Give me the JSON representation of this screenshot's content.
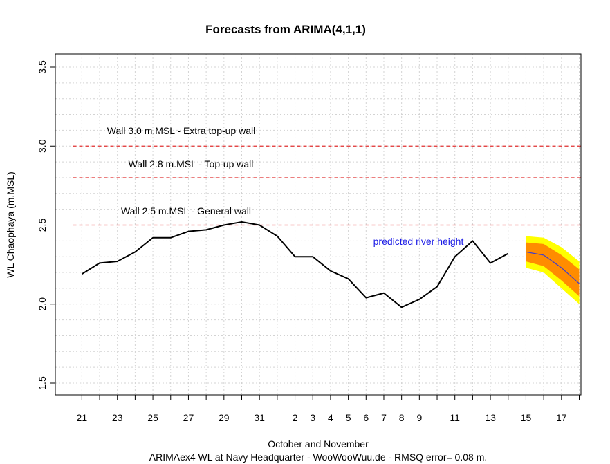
{
  "chart_data": {
    "type": "line",
    "title": "Forecasts from ARIMA(4,1,1)",
    "xlabel": "October and November",
    "subtitle": "ARIMAex4 WL at Navy Headquarter - WooWooWuu.de - RMSQ error= 0.08  m.",
    "ylabel": "WL Chaophaya (m.MSL)",
    "ylim": [
      1.5,
      3.5
    ],
    "y_ticks": [
      "1.5",
      "2.0",
      "2.5",
      "3.0",
      "3.5"
    ],
    "x_ticks": [
      "21",
      "23",
      "25",
      "27",
      "29",
      "31",
      "2",
      "3",
      "4",
      "5",
      "6",
      "7",
      "8",
      "9",
      "11",
      "13",
      "15",
      "17"
    ],
    "x_tick_index": [
      0,
      2,
      4,
      6,
      8,
      10,
      12,
      13,
      14,
      15,
      16,
      17,
      18,
      19,
      21,
      23,
      25,
      27
    ],
    "x_index_range": [
      -0.5,
      28.0
    ],
    "grid": true,
    "observed": {
      "x": [
        0,
        1,
        2,
        3,
        4,
        5,
        6,
        7,
        8,
        9,
        10,
        11,
        12,
        13,
        14,
        15,
        16,
        17,
        18,
        19,
        20,
        21,
        22,
        23,
        24
      ],
      "values": [
        2.19,
        2.26,
        2.27,
        2.33,
        2.42,
        2.42,
        2.46,
        2.47,
        2.5,
        2.52,
        2.5,
        2.43,
        2.3,
        2.3,
        2.21,
        2.16,
        2.04,
        2.07,
        1.98,
        2.03,
        2.11,
        2.3,
        2.4,
        2.26,
        2.32
      ],
      "color": "#000000"
    },
    "forecast": {
      "x": [
        25,
        26,
        27,
        28
      ],
      "mean": [
        2.33,
        2.31,
        2.23,
        2.13
      ],
      "lower80": [
        2.27,
        2.24,
        2.15,
        2.05
      ],
      "upper80": [
        2.39,
        2.38,
        2.31,
        2.22
      ],
      "lower95": [
        2.23,
        2.2,
        2.1,
        2.0
      ],
      "upper95": [
        2.43,
        2.42,
        2.36,
        2.27
      ],
      "mean_color": "#3b3bd1",
      "band80_color": "#ff8c00",
      "band95_color": "#ffff00"
    },
    "reference_lines": [
      {
        "y": 3.0,
        "label": "Wall 3.0 m.MSL - Extra top-up wall",
        "color": "#e23030"
      },
      {
        "y": 2.8,
        "label": "Wall 2.8 m.MSL - Top-up wall",
        "color": "#e23030"
      },
      {
        "y": 2.5,
        "label": "Wall 2.5 m.MSL - General wall",
        "color": "#e23030"
      }
    ],
    "annotation": {
      "text": "predicted river height",
      "color": "#1a1ae6"
    }
  }
}
